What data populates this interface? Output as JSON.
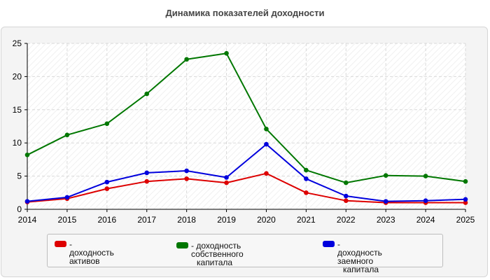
{
  "title": "Динамика показателей доходности",
  "chart_data": {
    "type": "line",
    "title": "Динамика показателей доходности",
    "xlabel": "",
    "ylabel": "",
    "x": [
      "2014",
      "2015",
      "2016",
      "2017",
      "2018",
      "2019",
      "2020",
      "2021",
      "2022",
      "2023",
      "2024",
      "2025"
    ],
    "ylim": [
      0,
      25
    ],
    "yticks": [
      "0",
      "5",
      "10",
      "15",
      "20",
      "25"
    ],
    "grid": true,
    "legend_position": "bottom",
    "series": [
      {
        "name": "- доходность активов",
        "color": "#dd0000",
        "values": [
          1.1,
          1.6,
          3.1,
          4.2,
          4.6,
          4.0,
          5.4,
          2.5,
          1.3,
          1.0,
          1.0,
          1.0
        ]
      },
      {
        "name": "- доходность собственного капитала",
        "color": "#007700",
        "values": [
          8.2,
          11.2,
          12.9,
          17.4,
          22.6,
          23.5,
          12.1,
          5.9,
          4.0,
          5.1,
          5.0,
          4.2
        ]
      },
      {
        "name": "- доходность заемного капитала",
        "color": "#0000dd",
        "values": [
          1.2,
          1.8,
          4.1,
          5.5,
          5.8,
          4.8,
          9.8,
          4.6,
          2.0,
          1.2,
          1.3,
          1.5
        ]
      }
    ]
  },
  "legend": {
    "items": [
      {
        "line1": "- доходность активов",
        "line2": ""
      },
      {
        "line1": "- доходность собственного",
        "line2": "капитала"
      },
      {
        "line1": "- доходность заемного",
        "line2": "капитала"
      }
    ]
  }
}
